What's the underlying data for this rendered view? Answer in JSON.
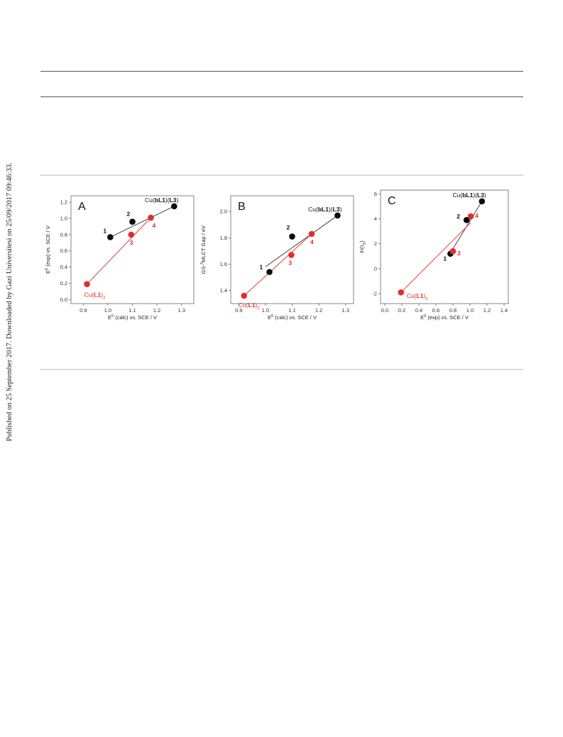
{
  "sidebar_text": "Published on 25 September 2017. Downloaded by Gazi Universitesi on 25/09/2017 09:46:33.",
  "chart_data": [
    {
      "panel": "A",
      "type": "scatter",
      "xlabel_main": "E",
      "xlabel_sup": "0",
      "xlabel_rest": " (calc) vs. SCE / V",
      "ylabel_main": "E",
      "ylabel_sup": "0",
      "ylabel_rest": " (exp) vs. SCE / V",
      "xlim": [
        0.85,
        1.35
      ],
      "ylim": [
        -0.05,
        1.28
      ],
      "xticks": [
        "0.9",
        "1.0",
        "1.1",
        "1.2",
        "1.3"
      ],
      "xtick_values": [
        0.9,
        1.0,
        1.1,
        1.2,
        1.3
      ],
      "yticks": [
        "0.0",
        "0.2",
        "0.4",
        "0.6",
        "0.8",
        "1.0",
        "1.2"
      ],
      "ytick_values": [
        0.0,
        0.2,
        0.4,
        0.6,
        0.8,
        1.0,
        1.2
      ],
      "black_points": [
        {
          "x": 1.01,
          "y": 0.77,
          "label": "1"
        },
        {
          "x": 1.1,
          "y": 0.96,
          "label": "2"
        },
        {
          "x": 1.27,
          "y": 1.15
        }
      ],
      "red_points": [
        {
          "x": 0.915,
          "y": 0.19
        },
        {
          "x": 1.095,
          "y": 0.8,
          "label": "3"
        },
        {
          "x": 1.175,
          "y": 1.01,
          "label": "4"
        }
      ],
      "black_fit": [
        [
          1.01,
          0.77
        ],
        [
          1.27,
          1.15
        ]
      ],
      "red_fit": [
        [
          0.915,
          0.19
        ],
        [
          1.175,
          1.01
        ]
      ],
      "top_label_a": "Cu(",
      "top_label_b": "bL1",
      "top_label_c": ")(",
      "top_label_d": "L3",
      "top_label_e": ")",
      "bottom_label_a": "Cu(",
      "bottom_label_b": "L1",
      "bottom_label_c": ")",
      "bottom_label_sub": "2"
    },
    {
      "panel": "B",
      "type": "scatter",
      "xlabel_main": "E",
      "xlabel_sup": "0",
      "xlabel_rest": " (calc) vs. SCE / V",
      "ylabel_main": "GS-",
      "ylabel_sup": "3",
      "ylabel_rest": "MLCT Gap / eV",
      "xlim": [
        0.87,
        1.33
      ],
      "ylim": [
        1.3,
        2.12
      ],
      "xticks": [
        "0.9",
        "1.0",
        "1.1",
        "1.2",
        "1.3"
      ],
      "xtick_values": [
        0.9,
        1.0,
        1.1,
        1.2,
        1.3
      ],
      "yticks": [
        "1.4",
        "1.6",
        "1.8",
        "2.0"
      ],
      "ytick_values": [
        1.4,
        1.6,
        1.8,
        2.0
      ],
      "black_points": [
        {
          "x": 1.015,
          "y": 1.54,
          "label": "1"
        },
        {
          "x": 1.1,
          "y": 1.81,
          "label": "2"
        },
        {
          "x": 1.27,
          "y": 1.97
        }
      ],
      "red_points": [
        {
          "x": 0.92,
          "y": 1.36
        },
        {
          "x": 1.097,
          "y": 1.67,
          "label": "3"
        },
        {
          "x": 1.173,
          "y": 1.83,
          "label": "4"
        }
      ],
      "black_fit": [
        [
          1.0,
          1.58
        ],
        [
          1.27,
          1.97
        ]
      ],
      "red_fit": [
        [
          0.92,
          1.36
        ],
        [
          1.173,
          1.83
        ]
      ],
      "top_label_a": "Cu(",
      "top_label_b": "bL1",
      "top_label_c": ")(",
      "top_label_d": "L3",
      "top_label_e": ")",
      "bottom_label_a": "Cu(",
      "bottom_label_b": "L1",
      "bottom_label_c": ")",
      "bottom_label_sub": "2"
    },
    {
      "panel": "C",
      "type": "scatter",
      "xlabel_main": "E",
      "xlabel_sup": "0",
      "xlabel_rest": " (exp) vs. SCE / V",
      "ylabel_main": "ln(τ",
      "ylabel_sup": "",
      "ylabel_sub": "S",
      "ylabel_rest": ")",
      "xlim": [
        -0.05,
        1.45
      ],
      "ylim": [
        -2.8,
        6.3
      ],
      "xticks": [
        "0.0",
        "0.2",
        "0.4",
        "0.6",
        "0.8",
        "1.0",
        "1.2",
        "1.4"
      ],
      "xtick_values": [
        0.0,
        0.2,
        0.4,
        0.6,
        0.8,
        1.0,
        1.2,
        1.4
      ],
      "yticks": [
        "-2",
        "0",
        "2",
        "4",
        "6"
      ],
      "ytick_values": [
        -2,
        0,
        2,
        4,
        6
      ],
      "black_points": [
        {
          "x": 0.77,
          "y": 1.2,
          "label": "1"
        },
        {
          "x": 0.96,
          "y": 3.9,
          "label": "2"
        },
        {
          "x": 1.14,
          "y": 5.4
        }
      ],
      "red_points": [
        {
          "x": 0.19,
          "y": -1.9
        },
        {
          "x": 0.8,
          "y": 1.4,
          "label": "3"
        },
        {
          "x": 1.01,
          "y": 4.2,
          "label": "4"
        }
      ],
      "black_fit": [
        [
          0.8,
          1.6
        ],
        [
          1.14,
          5.4
        ]
      ],
      "red_fit": [
        [
          0.19,
          -1.9
        ],
        [
          1.01,
          3.7
        ]
      ],
      "top_label_a": "Cu(",
      "top_label_b": "bL1",
      "top_label_c": ")(",
      "top_label_d": "L3",
      "top_label_e": ")",
      "bottom_label_a": "Cu(",
      "bottom_label_b": "L1",
      "bottom_label_c": ")",
      "bottom_label_sub": "2"
    }
  ]
}
